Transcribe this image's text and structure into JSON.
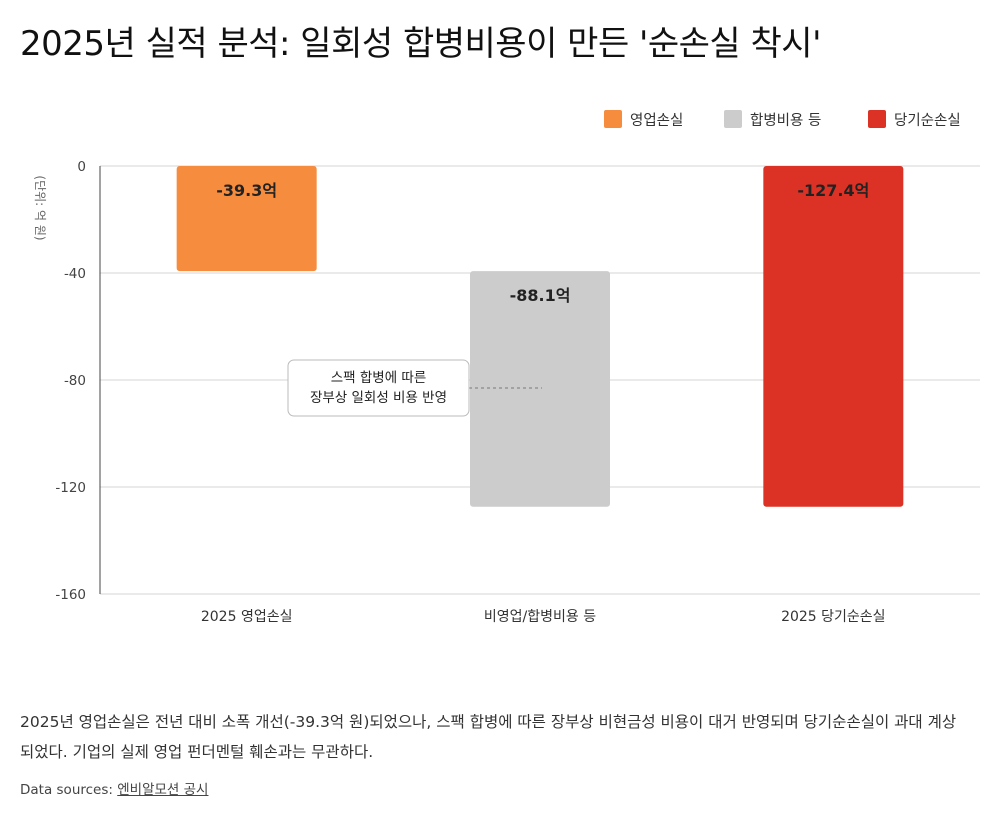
{
  "title": "2025년 실적 분석: 일회성 합병비용이 만든 '순손실 착시'",
  "chart_data": {
    "type": "bar",
    "subtype": "waterfall",
    "ylabel": "(단위: 억 원)",
    "ylim": [
      -160,
      0
    ],
    "yticks": [
      0,
      -40,
      -80,
      -120,
      -160
    ],
    "grid": true,
    "legend_position": "top-right",
    "categories": [
      "2025 영업손실",
      "비영업/합병비용 등",
      "2025 당기순손실"
    ],
    "legend": [
      {
        "label": "영업손실",
        "color": "#f68c3d"
      },
      {
        "label": "합병비용 등",
        "color": "#cccccc"
      },
      {
        "label": "당기순손실",
        "color": "#dc3225"
      }
    ],
    "bars": [
      {
        "category": "2025 영업손실",
        "start": 0,
        "end": -39.3,
        "value": -39.3,
        "label": "-39.3억",
        "color": "#f68c3d"
      },
      {
        "category": "비영업/합병비용 등",
        "start": -39.3,
        "end": -127.4,
        "value": -88.1,
        "label": "-88.1억",
        "color": "#cccccc"
      },
      {
        "category": "2025 당기순손실",
        "start": 0,
        "end": -127.4,
        "value": -127.4,
        "label": "-127.4억",
        "color": "#dc3225"
      }
    ],
    "annotation": {
      "lines": [
        "스팩 합병에 따른",
        "장부상 일회성 비용 반영"
      ],
      "y": -83
    }
  },
  "description": "2025년 영업손실은 전년 대비 소폭 개선(-39.3억 원)되었으나, 스팩 합병에 따른 장부상 비현금성 비용이 대거 반영되며 당기순손실이 과대 계상되었다. 기업의 실제 영업 펀더멘털 훼손과는 무관하다.",
  "sources": {
    "prefix": "Data sources: ",
    "link": "엔비알모션 공시"
  }
}
